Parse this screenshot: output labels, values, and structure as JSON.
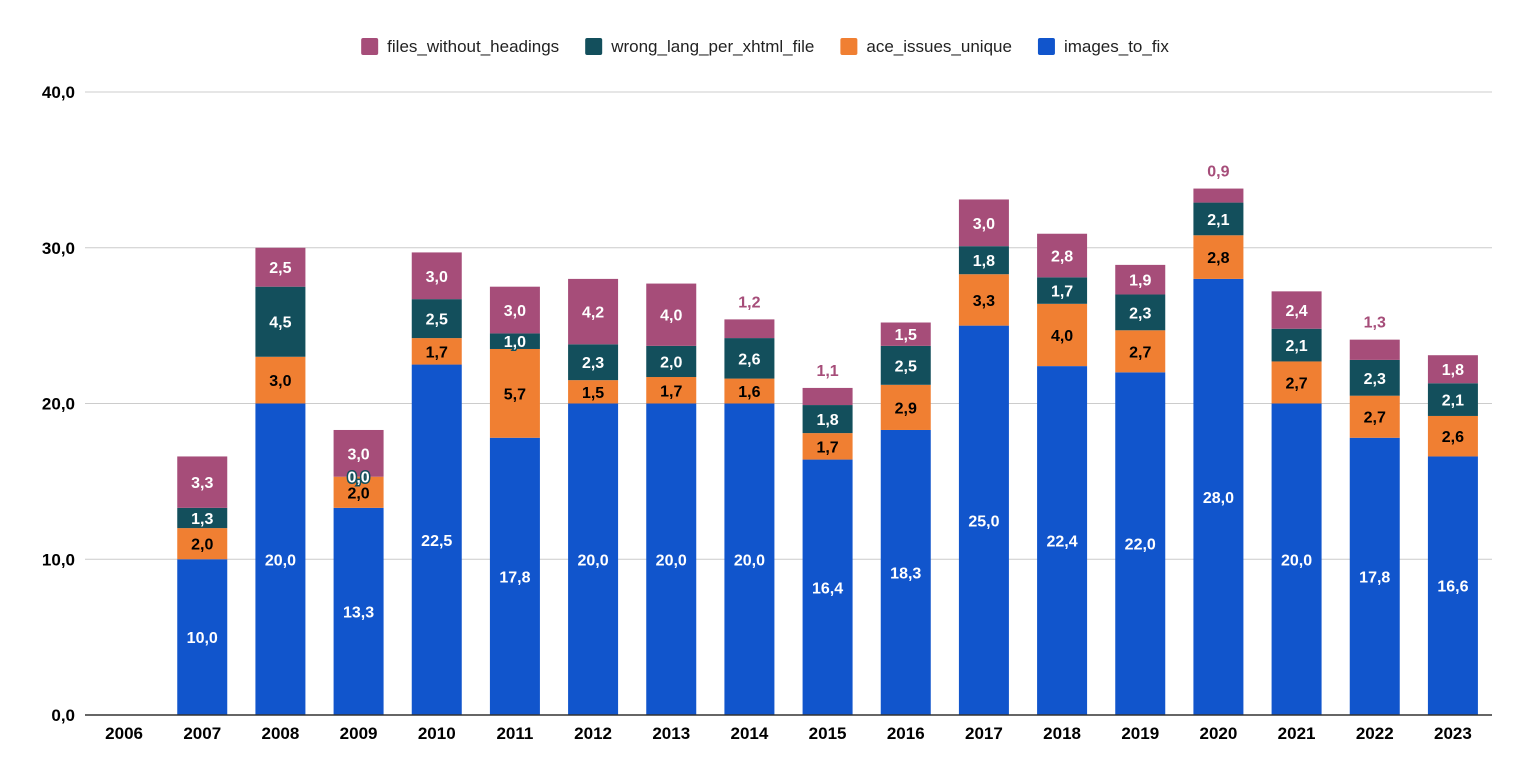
{
  "chart_data": {
    "type": "bar",
    "stacked": true,
    "categories": [
      "2006",
      "2007",
      "2008",
      "2009",
      "2010",
      "2011",
      "2012",
      "2013",
      "2014",
      "2015",
      "2016",
      "2017",
      "2018",
      "2019",
      "2020",
      "2021",
      "2022",
      "2023"
    ],
    "series": [
      {
        "name": "images_to_fix",
        "color": "#1155cc",
        "label_color": "#ffffff",
        "values": [
          null,
          10.0,
          20.0,
          13.3,
          22.5,
          17.8,
          20.0,
          20.0,
          20.0,
          16.4,
          18.3,
          25.0,
          22.4,
          22.0,
          28.0,
          20.0,
          17.8,
          16.6
        ],
        "labels": [
          "",
          "10,0",
          "20,0",
          "13,3",
          "22,5",
          "17,8",
          "20,0",
          "20,0",
          "20,0",
          "16,4",
          "18,3",
          "25,0",
          "22,4",
          "22,0",
          "28,0",
          "20,0",
          "17,8",
          "16,6"
        ]
      },
      {
        "name": "ace_issues_unique",
        "color": "#f07f32",
        "label_color": "#000000",
        "values": [
          null,
          2.0,
          3.0,
          2.0,
          1.7,
          5.7,
          1.5,
          1.7,
          1.6,
          1.7,
          2.9,
          3.3,
          4.0,
          2.7,
          2.8,
          2.7,
          2.7,
          2.6
        ],
        "labels": [
          "",
          "2,0",
          "3,0",
          "2,0",
          "1,7",
          "5,7",
          "1,5",
          "1,7",
          "1,6",
          "1,7",
          "2,9",
          "3,3",
          "4,0",
          "2,7",
          "2,8",
          "2,7",
          "2,7",
          "2,6"
        ]
      },
      {
        "name": "wrong_lang_per_xhtml_file",
        "color": "#134f5c",
        "label_color": "#ffffff",
        "values": [
          null,
          1.3,
          4.5,
          0.0,
          2.5,
          1.0,
          2.3,
          2.0,
          2.6,
          1.8,
          2.5,
          1.8,
          1.7,
          2.3,
          2.1,
          2.1,
          2.3,
          2.1
        ],
        "labels": [
          "",
          "1,3",
          "4,5",
          "0,0",
          "2,5",
          "1,0",
          "2,3",
          "2,0",
          "2,6",
          "1,8",
          "2,5",
          "1,8",
          "1,7",
          "2,3",
          "2,1",
          "2,1",
          "2,3",
          "2,1"
        ]
      },
      {
        "name": "files_without_headings",
        "color": "#a64d79",
        "label_color": "#ffffff",
        "values": [
          null,
          3.3,
          2.5,
          3.0,
          3.0,
          3.0,
          4.2,
          4.0,
          1.2,
          1.1,
          1.5,
          3.0,
          2.8,
          1.9,
          0.9,
          2.4,
          1.3,
          1.8
        ],
        "labels": [
          "",
          "3,3",
          "2,5",
          "3,0",
          "3,0",
          "3,0",
          "4,2",
          "4,0",
          "1,2",
          "1,1",
          "1,5",
          "3,0",
          "2,8",
          "1,9",
          "0,9",
          "2,4",
          "1,3",
          "1,8"
        ]
      }
    ],
    "y_ticks": [
      "0,0",
      "10,0",
      "20,0",
      "30,0",
      "40,0"
    ],
    "ylim": [
      0,
      40
    ],
    "title": "",
    "xlabel": "",
    "ylabel": "",
    "grid": true,
    "legend_position": "top-center"
  }
}
